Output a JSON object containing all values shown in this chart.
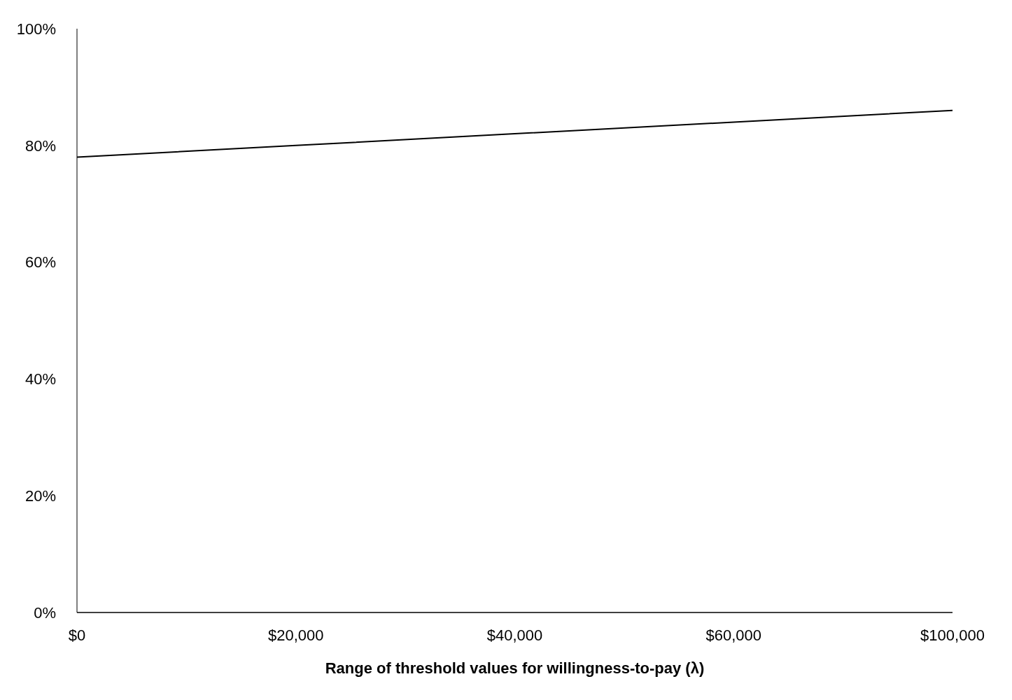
{
  "chart_data": {
    "type": "line",
    "xlabel": "Range of threshold values for willingness-to-pay (λ)",
    "categories": [
      "$0",
      "$20,000",
      "$40,000",
      "$60,000",
      "$100,000"
    ],
    "series": [
      {
        "color": "#000000",
        "values": [
          78,
          80,
          82,
          84,
          86
        ]
      }
    ],
    "ylim": [
      0,
      100
    ],
    "yticks": [
      {
        "value": 0,
        "label": "0%"
      },
      {
        "value": 20,
        "label": "20%"
      },
      {
        "value": 40,
        "label": "40%"
      },
      {
        "value": 60,
        "label": "60%"
      },
      {
        "value": 80,
        "label": "80%"
      },
      {
        "value": 100,
        "label": "100%"
      }
    ],
    "grid": false,
    "marker": "none",
    "line_style": "solid"
  }
}
